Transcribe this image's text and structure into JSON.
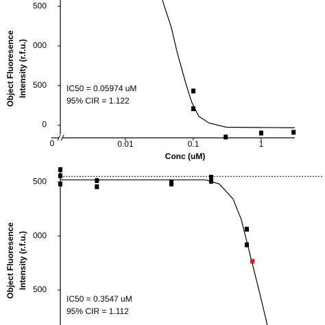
{
  "chart_data": [
    {
      "type": "scatter",
      "xlabel": "Conc (uM)",
      "ylabel": [
        "Object Fluoresence",
        "Intensity (r.f.u.)"
      ],
      "annotations": [
        "IC50 = 0.05974 uM",
        "95% CIR = 1.122"
      ],
      "xscale": "log",
      "xlim": [
        0.0011,
        3.95
      ],
      "xticks": [
        0.01,
        0.1,
        1
      ],
      "x_break_label": "0",
      "ylim": [
        -160,
        1580
      ],
      "yticks": [
        0,
        500,
        {
          "value": 1000,
          "label": "000"
        },
        {
          "value": 1500,
          "label": "500"
        }
      ],
      "series": [
        {
          "color": "#000000",
          "x": [
            0.1,
            0.1,
            0.3,
            1,
            3
          ],
          "values": [
            431,
            207,
            -150,
            -100,
            -90
          ]
        }
      ],
      "fit": {
        "color": "#000000",
        "x": [
          0.035,
          0.0475,
          0.0573,
          0.0673,
          0.0793,
          0.0955,
          0.12,
          0.171,
          0.305,
          3.13
        ],
        "values": [
          1578,
          1233,
          931,
          716,
          500,
          284,
          112,
          26,
          -26,
          -34
        ]
      }
    },
    {
      "type": "scatter",
      "ylabel": [
        "Object Fluoresence",
        "Intensity (r.f.u.)"
      ],
      "annotations": [
        "IC50 = 0.3547 uM",
        "95% CIR = 1.112"
      ],
      "xscale": "log",
      "xlim": [
        0.0011,
        3.95
      ],
      "ylim": [
        170,
        1610
      ],
      "yticks": [
        500,
        {
          "value": 1000,
          "label": "000"
        },
        {
          "value": 1500,
          "label": "500"
        }
      ],
      "reference_line": 1551,
      "zero_values": [
        1614,
        1557,
        1481
      ],
      "series": [
        {
          "color": "#000000",
          "x": [
            0.0038,
            0.0038,
            0.0475,
            0.0475,
            0.183,
            0.183,
            0.614,
            0.614
          ],
          "values": [
            1513,
            1456,
            1500,
            1481,
            1544,
            1506,
            1063,
            918
          ]
        },
        {
          "color": "#e02020",
          "x": [
            0.74
          ],
          "values": [
            766
          ]
        }
      ],
      "fit": {
        "color": "#000000",
        "x": [
          0.0011,
          0.152,
          0.242,
          0.385,
          0.509,
          0.643,
          0.811,
          1.02,
          1.23
        ],
        "values": [
          1519,
          1519,
          1481,
          1342,
          1152,
          899,
          646,
          392,
          177
        ]
      }
    }
  ]
}
